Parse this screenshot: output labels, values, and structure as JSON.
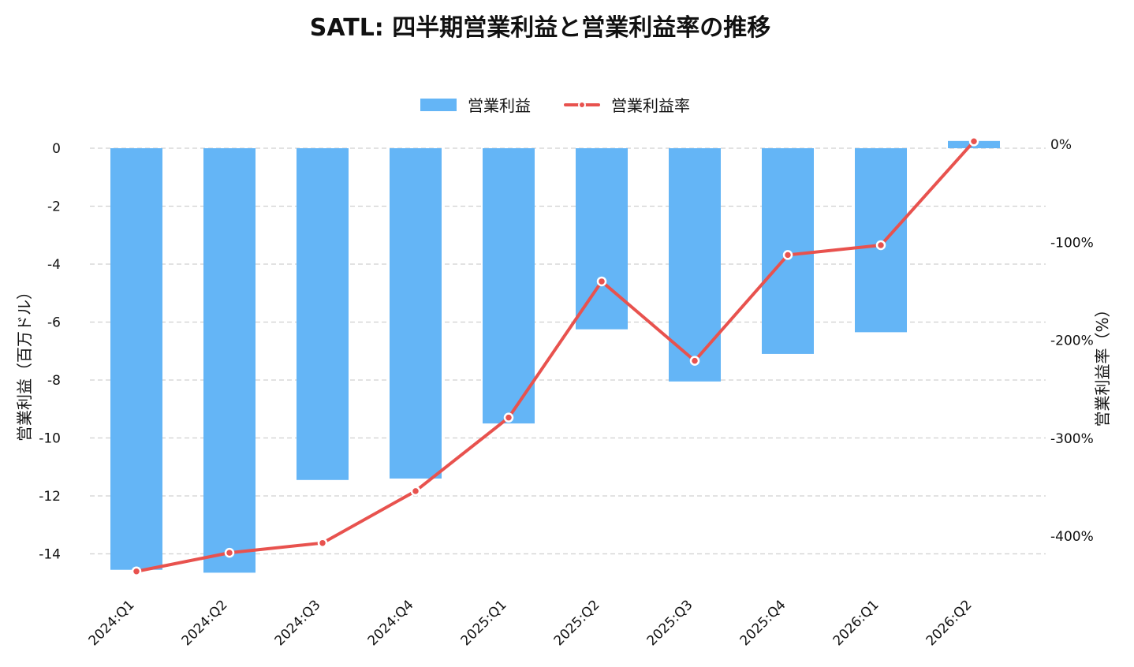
{
  "chart_data": {
    "type": "bar",
    "title": "SATL: 四半期営業利益と営業利益率の推移",
    "categories": [
      "2024:Q1",
      "2024:Q2",
      "2024:Q3",
      "2024:Q4",
      "2025:Q1",
      "2025:Q2",
      "2025:Q3",
      "2025:Q4",
      "2026:Q1",
      "2026:Q2"
    ],
    "series": [
      {
        "name": "営業利益",
        "type": "bar",
        "axis": "left",
        "color": "#64b5f6",
        "values": [
          -14.55,
          -14.65,
          -11.45,
          -11.4,
          -9.5,
          -6.25,
          -8.05,
          -7.1,
          -6.35,
          0.25
        ]
      },
      {
        "name": "営業利益率",
        "type": "line",
        "axis": "right",
        "color": "#e8524e",
        "values": [
          -436,
          -417,
          -407,
          -354,
          -279,
          -140,
          -221,
          -113,
          -103,
          3
        ]
      }
    ],
    "y_left": {
      "label": "営業利益（百万ドル）",
      "ylim": [
        -15,
        0.5
      ],
      "ticks": [
        0,
        -2,
        -4,
        -6,
        -8,
        -10,
        -12,
        -14
      ],
      "tick_labels": [
        "0",
        "-2",
        "-4",
        "-6",
        "-8",
        "-10",
        "-12",
        "-14"
      ]
    },
    "y_right": {
      "label": "営業利益率（%）",
      "ylim": [
        -442,
        8
      ],
      "ticks": [
        0,
        -100,
        -200,
        -300,
        -400
      ],
      "tick_labels": [
        "0%",
        "-100%",
        "-200%",
        "-300%",
        "-400%"
      ]
    },
    "grid": true,
    "legend_position": "top-center"
  }
}
